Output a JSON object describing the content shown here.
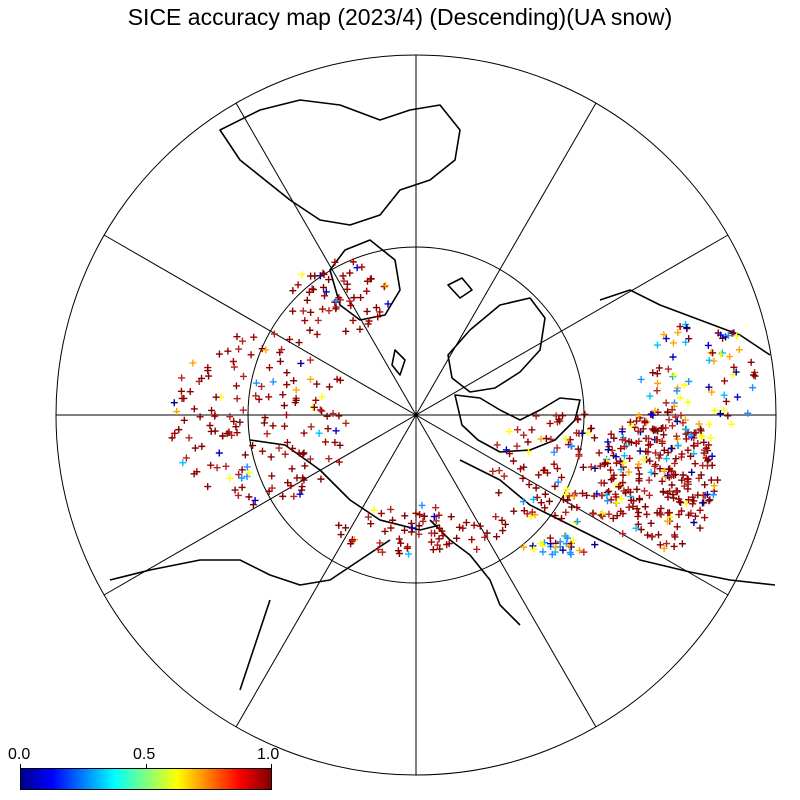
{
  "title": "SICE accuracy map (2023/4) (Descending)(UA snow)",
  "map": {
    "projection": "north-polar-stereographic",
    "meridian_spacing_deg": 30,
    "parallel_circles": 2,
    "coastline_color": "#000000",
    "grid_color": "#000000"
  },
  "colorbar": {
    "min_label": "0.0",
    "mid_label": "0.5",
    "max_label": "1.0",
    "colors": [
      "#00008f",
      "#0000ff",
      "#007fff",
      "#00ffff",
      "#7fff7f",
      "#ffff00",
      "#ff7f00",
      "#ff0000",
      "#7f0000"
    ]
  }
}
